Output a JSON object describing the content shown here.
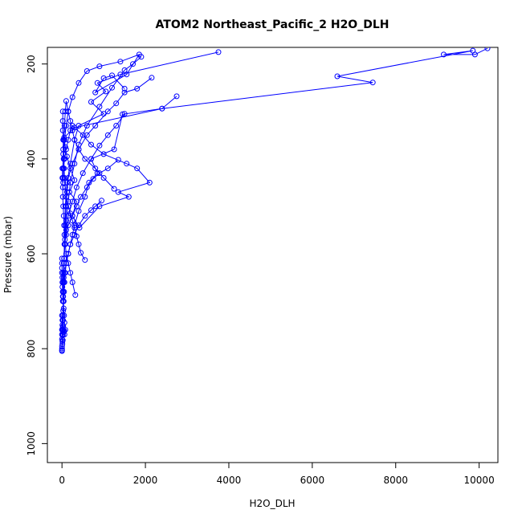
{
  "chart_data": {
    "type": "line",
    "title": "ATOM2 Northeast_Pacific_2 H2O_DLH",
    "xlabel": "H2O_DLH",
    "ylabel": "Pressure (mbar)",
    "xlim": [
      -350,
      10450
    ],
    "ylim": [
      1040,
      165
    ],
    "y_reversed": true,
    "xticks": [
      0,
      2000,
      4000,
      6000,
      8000,
      10000
    ],
    "yticks": [
      200,
      400,
      600,
      800,
      1000
    ],
    "series_color": "#0000ff",
    "series": [
      {
        "x": [
          10200,
          9900,
          9150,
          9850,
          6600,
          7450,
          2400,
          300,
          50,
          80,
          120,
          200,
          300,
          180,
          350,
          250,
          420,
          900,
          1600,
          1350,
          2100,
          1800,
          1550,
          1000,
          700,
          500,
          250,
          200,
          150,
          100,
          60,
          40,
          30
        ],
        "y": [
          167,
          180,
          180,
          172,
          226,
          239,
          294,
          334,
          355,
          375,
          395,
          420,
          445,
          470,
          490,
          520,
          545,
          500,
          480,
          470,
          450,
          420,
          410,
          390,
          370,
          350,
          330,
          340,
          360,
          380,
          400,
          420,
          440
        ]
      },
      {
        "x": [
          3750,
          1400,
          850,
          1050,
          700,
          1000,
          400,
          300,
          200,
          120,
          80,
          60,
          50
        ],
        "y": [
          175,
          222,
          240,
          258,
          280,
          305,
          330,
          360,
          410,
          450,
          500,
          560,
          620
        ]
      },
      {
        "x": [
          2750,
          2400,
          1450,
          1250,
          700,
          850,
          650,
          550,
          400,
          300,
          250,
          200,
          150,
          100,
          80,
          60,
          50,
          40,
          30,
          25,
          20
        ],
        "y": [
          268,
          294,
          306,
          380,
          400,
          430,
          450,
          480,
          510,
          540,
          560,
          580,
          600,
          620,
          640,
          660,
          680,
          700,
          720,
          740,
          760
        ]
      },
      {
        "x": [
          2150,
          1800,
          1500,
          1300,
          1100,
          800,
          600,
          400,
          250,
          150,
          120,
          100,
          80,
          60,
          40,
          30,
          20
        ],
        "y": [
          229,
          252,
          260,
          283,
          300,
          330,
          350,
          380,
          410,
          440,
          470,
          500,
          540,
          580,
          620,
          660,
          700
        ]
      },
      {
        "x": [
          1500,
          1200,
          1000,
          800,
          1550,
          1850,
          1400,
          900,
          600,
          400,
          250,
          150,
          100,
          60,
          40,
          30
        ],
        "y": [
          252,
          224,
          230,
          260,
          222,
          180,
          195,
          205,
          215,
          240,
          270,
          300,
          330,
          360,
          400,
          450
        ]
      },
      {
        "x": [
          1900,
          1700,
          1500,
          1200,
          900,
          600,
          400,
          300,
          200,
          150,
          100,
          70,
          50,
          40,
          30,
          20,
          20
        ],
        "y": [
          185,
          200,
          213,
          250,
          290,
          330,
          370,
          410,
          450,
          490,
          530,
          570,
          610,
          650,
          690,
          730,
          770
        ]
      },
      {
        "x": [
          1500,
          1300,
          1100,
          900,
          700,
          500,
          350,
          250,
          150,
          100,
          70,
          50,
          30,
          20
        ],
        "y": [
          305,
          330,
          350,
          372,
          400,
          430,
          460,
          490,
          520,
          550,
          580,
          610,
          640,
          680
        ]
      },
      {
        "x": [
          1250,
          1000,
          800,
          550,
          400,
          300,
          250,
          200,
          150,
          100,
          80,
          60,
          40,
          30,
          20
        ],
        "y": [
          463,
          440,
          420,
          400,
          380,
          360,
          340,
          320,
          300,
          278,
          300,
          330,
          360,
          390,
          420
        ]
      },
      {
        "x": [
          1350,
          1100,
          900,
          750,
          600,
          450,
          350,
          250,
          150,
          100,
          60
        ],
        "y": [
          402,
          420,
          430,
          442,
          460,
          480,
          500,
          520,
          540,
          560,
          580
        ]
      },
      {
        "x": [
          950,
          800,
          700,
          550,
          400,
          300,
          200,
          150,
          100,
          60,
          40,
          30
        ],
        "y": [
          488,
          500,
          508,
          520,
          540,
          560,
          580,
          600,
          620,
          640,
          660,
          680
        ]
      },
      {
        "x": [
          550,
          450,
          400,
          350,
          300,
          250,
          200,
          150,
          100,
          80,
          60,
          50,
          40,
          30,
          30,
          20,
          20,
          20
        ],
        "y": [
          613,
          598,
          580,
          563,
          545,
          530,
          515,
          500,
          480,
          460,
          440,
          420,
          400,
          380,
          360,
          340,
          320,
          300
        ]
      },
      {
        "x": [
          320,
          250,
          200,
          150,
          100,
          80,
          60,
          50,
          40,
          30,
          20,
          20,
          10,
          10
        ],
        "y": [
          687,
          660,
          640,
          620,
          600,
          580,
          560,
          540,
          520,
          500,
          480,
          460,
          440,
          420
        ]
      },
      {
        "x": [
          80,
          60,
          50,
          40,
          30,
          20,
          20,
          10,
          10,
          10,
          0,
          0,
          0,
          0
        ],
        "y": [
          760,
          745,
          730,
          715,
          700,
          690,
          680,
          670,
          660,
          650,
          640,
          630,
          620,
          610
        ]
      },
      {
        "x": [
          60,
          40,
          30,
          20,
          10,
          10,
          0,
          0,
          0,
          0,
          0
        ],
        "y": [
          770,
          765,
          760,
          755,
          750,
          740,
          730,
          760,
          780,
          795,
          805
        ]
      },
      {
        "x": [
          0,
          10,
          20,
          0,
          10,
          30,
          50,
          20,
          10,
          0
        ],
        "y": [
          800,
          790,
          782,
          770,
          760,
          752,
          762,
          772,
          785,
          803
        ]
      }
    ]
  }
}
